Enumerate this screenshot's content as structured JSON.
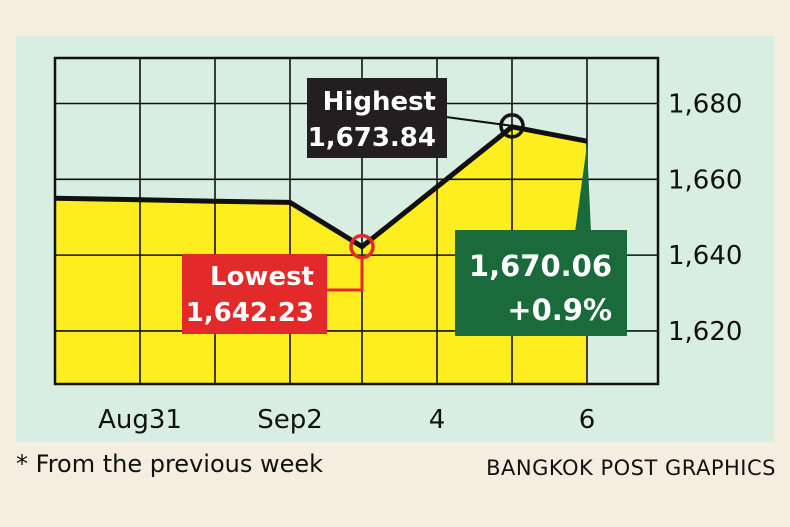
{
  "chart_data": {
    "type": "line",
    "x": [
      "Aug30",
      "Aug31",
      "Sep1",
      "Sep2",
      "Sep3",
      "Sep4",
      "Sep5",
      "Sep6"
    ],
    "values": [
      1655,
      1654.6,
      1654.2,
      1653.9,
      1642.23,
      1658,
      1673.84,
      1670.06
    ],
    "ylim": [
      1606,
      1692
    ],
    "yticks": [
      1620,
      1640,
      1660,
      1680
    ],
    "ytick_labels": [
      "1,620",
      "1,640",
      "1,660",
      "1,680"
    ],
    "xtick_labels": [
      {
        "x": "Aug31",
        "label": "Aug31"
      },
      {
        "x": "Sep2",
        "label": "Sep2"
      },
      {
        "x": "Sep4",
        "label": "4"
      },
      {
        "x": "Sep6",
        "label": "6"
      }
    ],
    "grid": true,
    "annotations": {
      "highest": {
        "x": "Sep5",
        "title": "Highest",
        "value": "1,673.84"
      },
      "lowest": {
        "x": "Sep3",
        "title": "Lowest",
        "value": "1,642.23"
      },
      "last": {
        "x": "Sep6",
        "value": "1,670.06",
        "change": "+0.9%"
      }
    }
  },
  "colors": {
    "background": "#f5ede0",
    "panel": "#d9eee3",
    "fill": "#ffee1f",
    "line": "#111111",
    "highest_box": "#231f20",
    "lowest_box": "#e22a2a",
    "last_box": "#1a6a3c"
  },
  "footnote": "* From the previous week",
  "credit": "BANGKOK POST GRAPHICS"
}
